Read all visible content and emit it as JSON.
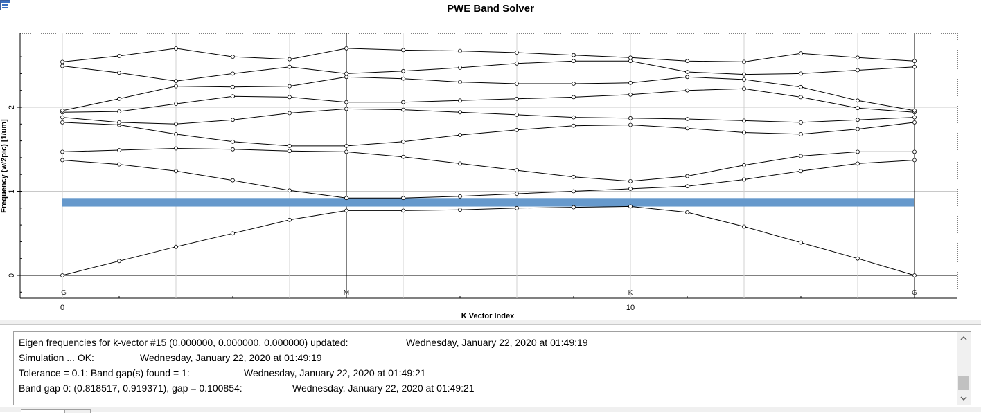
{
  "window": {
    "app_icon": "window-app-icon"
  },
  "chart_data": {
    "type": "line",
    "title": "PWE Band Solver",
    "xlabel": "K Vector Index",
    "ylabel": "Frequency (w/2pic) [1/um]",
    "xlim": [
      0,
      15
    ],
    "ylim": [
      -0.27,
      2.87
    ],
    "x_ticks": [
      0,
      10
    ],
    "y_ticks": [
      0,
      1,
      2
    ],
    "grid": true,
    "symmetry_points": [
      {
        "x": 0,
        "label": "G"
      },
      {
        "x": 5,
        "label": "M"
      },
      {
        "x": 10,
        "label": "K"
      },
      {
        "x": 15,
        "label": "G"
      }
    ],
    "x": [
      0,
      1,
      2,
      3,
      4,
      5,
      6,
      7,
      8,
      9,
      10,
      11,
      12,
      13,
      14,
      15
    ],
    "series": [
      {
        "values": [
          0.0,
          0.17,
          0.34,
          0.5,
          0.66,
          0.77,
          0.77,
          0.78,
          0.8,
          0.81,
          0.82,
          0.75,
          0.58,
          0.39,
          0.2,
          0.0
        ]
      },
      {
        "values": [
          1.37,
          1.32,
          1.24,
          1.13,
          1.01,
          0.92,
          0.92,
          0.94,
          0.97,
          1.0,
          1.03,
          1.06,
          1.14,
          1.24,
          1.33,
          1.37
        ]
      },
      {
        "values": [
          1.47,
          1.49,
          1.51,
          1.5,
          1.48,
          1.47,
          1.41,
          1.33,
          1.25,
          1.17,
          1.12,
          1.18,
          1.31,
          1.42,
          1.47,
          1.47
        ]
      },
      {
        "values": [
          1.82,
          1.79,
          1.68,
          1.59,
          1.54,
          1.54,
          1.59,
          1.67,
          1.73,
          1.78,
          1.79,
          1.75,
          1.7,
          1.68,
          1.74,
          1.82
        ]
      },
      {
        "values": [
          1.88,
          1.82,
          1.8,
          1.85,
          1.93,
          1.98,
          1.97,
          1.94,
          1.91,
          1.88,
          1.87,
          1.86,
          1.84,
          1.82,
          1.85,
          1.88
        ]
      },
      {
        "values": [
          1.94,
          1.95,
          2.04,
          2.13,
          2.12,
          2.06,
          2.06,
          2.08,
          2.1,
          2.12,
          2.15,
          2.2,
          2.22,
          2.12,
          1.99,
          1.94
        ]
      },
      {
        "values": [
          1.96,
          2.1,
          2.25,
          2.24,
          2.25,
          2.36,
          2.34,
          2.3,
          2.28,
          2.28,
          2.29,
          2.36,
          2.33,
          2.24,
          2.08,
          1.96
        ]
      },
      {
        "values": [
          2.49,
          2.41,
          2.31,
          2.4,
          2.48,
          2.4,
          2.43,
          2.47,
          2.52,
          2.55,
          2.55,
          2.42,
          2.39,
          2.4,
          2.44,
          2.48
        ]
      },
      {
        "values": [
          2.54,
          2.61,
          2.7,
          2.6,
          2.57,
          2.7,
          2.68,
          2.67,
          2.65,
          2.62,
          2.59,
          2.55,
          2.54,
          2.64,
          2.59,
          2.55
        ]
      }
    ],
    "band_gap": {
      "low": 0.818517,
      "high": 0.919371,
      "color": "#6699cc"
    },
    "line_color": "#000000"
  },
  "log": {
    "lines": [
      {
        "message": "Eigen frequencies for k-vector #15 (0.000000, 0.000000, 0.000000) updated:",
        "timestamp": "Wednesday, January 22, 2020 at 01:49:19"
      },
      {
        "message": "Simulation ... OK:",
        "timestamp": "Wednesday, January 22, 2020 at 01:49:19"
      },
      {
        "message": "Tolerance = 0.1: Band gap(s) found = 1:",
        "timestamp": "Wednesday, January 22, 2020 at 01:49:21"
      },
      {
        "message": "Band gap 0: (0.818517, 0.919371), gap = 0.100854:",
        "timestamp": "Wednesday, January 22, 2020 at 01:49:21"
      }
    ],
    "scroll_up_icon": "chevron-up-icon",
    "scroll_down_icon": "chevron-down-icon"
  }
}
